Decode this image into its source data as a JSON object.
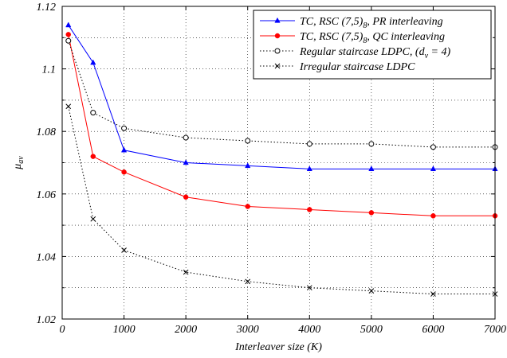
{
  "chart_data": {
    "type": "line",
    "xlabel": "Interleaver size (K)",
    "ylabel": "μ",
    "ylabel_sub": "av",
    "xlim": [
      0,
      7000
    ],
    "ylim": [
      1.02,
      1.12
    ],
    "x_ticks": [
      0,
      1000,
      2000,
      3000,
      4000,
      5000,
      6000,
      7000
    ],
    "y_ticks": [
      1.02,
      1.04,
      1.06,
      1.08,
      1.1,
      1.12
    ],
    "x_tick_labels": [
      "0",
      "1000",
      "2000",
      "3000",
      "4000",
      "5000",
      "6000",
      "7000"
    ],
    "y_tick_labels": [
      "1.02",
      "1.04",
      "1.06",
      "1.08",
      "1.1",
      "1.12"
    ],
    "grid": true,
    "legend_position": "top-right",
    "series": [
      {
        "name": "TC, RSC (7,5)8, PR interleaving",
        "legend": {
          "pre": "TC, RSC (7,5)",
          "sub": "8",
          "post": ", PR interleaving"
        },
        "color": "#0000ff",
        "marker": "triangle",
        "line_style": "solid",
        "x": [
          100,
          500,
          1000,
          2000,
          3000,
          4000,
          5000,
          6000,
          7000
        ],
        "y": [
          1.114,
          1.102,
          1.074,
          1.07,
          1.069,
          1.068,
          1.068,
          1.068,
          1.068
        ]
      },
      {
        "name": "TC, RSC (7,5)8, QC interleaving",
        "legend": {
          "pre": "TC, RSC (7,5)",
          "sub": "8",
          "post": ", QC interleaving"
        },
        "color": "#ff0000",
        "marker": "filled-circle",
        "line_style": "solid",
        "x": [
          100,
          500,
          1000,
          2000,
          3000,
          4000,
          5000,
          6000,
          7000
        ],
        "y": [
          1.111,
          1.072,
          1.067,
          1.059,
          1.056,
          1.055,
          1.054,
          1.053,
          1.053
        ]
      },
      {
        "name": "Regular staircase LDPC, (dv = 4)",
        "legend": {
          "pre": "Regular staircase LDPC, (d",
          "sub": "v",
          "post": " = 4)"
        },
        "color": "#000000",
        "marker": "open-circle",
        "line_style": "dotted",
        "x": [
          100,
          500,
          1000,
          2000,
          3000,
          4000,
          5000,
          6000,
          7000
        ],
        "y": [
          1.109,
          1.086,
          1.081,
          1.078,
          1.077,
          1.076,
          1.076,
          1.075,
          1.075
        ]
      },
      {
        "name": "Irregular staircase LDPC",
        "legend": {
          "pre": "Irregular staircase LDPC",
          "sub": "",
          "post": ""
        },
        "color": "#000000",
        "marker": "x",
        "line_style": "dotted",
        "x": [
          100,
          500,
          1000,
          2000,
          3000,
          4000,
          5000,
          6000,
          7000
        ],
        "y": [
          1.088,
          1.052,
          1.042,
          1.035,
          1.032,
          1.03,
          1.029,
          1.028,
          1.028
        ]
      }
    ]
  }
}
